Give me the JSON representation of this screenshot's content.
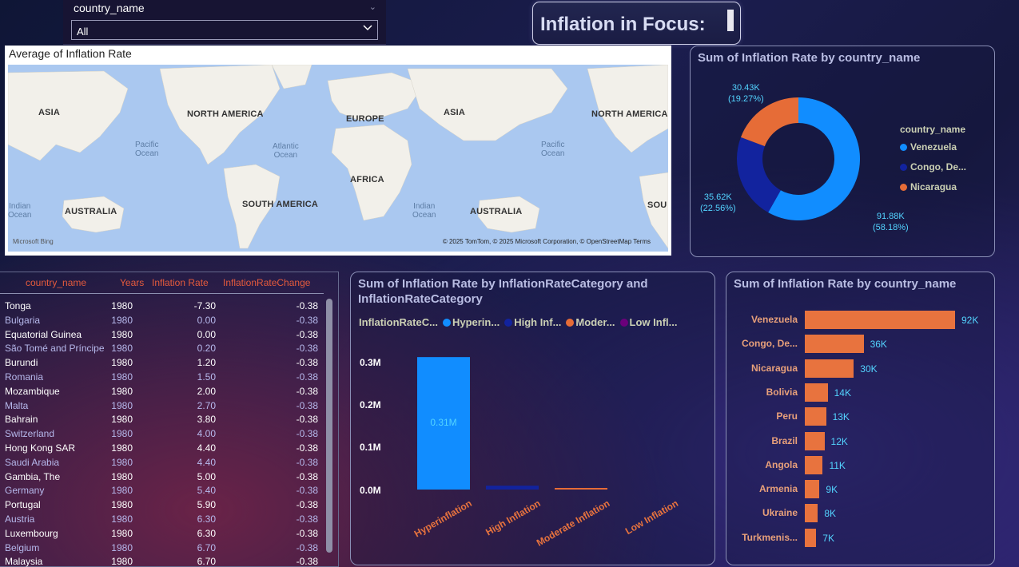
{
  "slicer": {
    "label": "country_name",
    "selected": "All"
  },
  "title": "Inflation in Focus:",
  "map": {
    "title": "Average of Inflation Rate",
    "continents": [
      "ASIA",
      "NORTH AMERICA",
      "EUROPE",
      "ASIA",
      "NORTH AMERICA",
      "AFRICA",
      "SOUTH AMERICA",
      "AUSTRALIA",
      "AUSTRALIA",
      "SOU"
    ],
    "oceans": [
      "Pacific\nOcean",
      "Atlantic\nOcean",
      "Pacific\nOcean",
      "Indian\nOcean",
      "Indian\nOcean"
    ],
    "attribution_logo": "Microsoft Bing",
    "attribution": "© 2025 TomTom, © 2025 Microsoft Corporation, © OpenStreetMap  Terms"
  },
  "donut": {
    "title": "Sum of Inflation Rate by country_name",
    "legend_title": "country_name",
    "labels": [
      {
        "value": "91.88K",
        "pct": "(58.18%)"
      },
      {
        "value": "35.62K",
        "pct": "(22.56%)"
      },
      {
        "value": "30.43K",
        "pct": "(19.27%)"
      }
    ]
  },
  "table": {
    "headers": [
      "country_name",
      "Years",
      "Inflation Rate",
      "InflationRateChange"
    ],
    "rows": [
      [
        "Tonga",
        "1980",
        "-7.30",
        "-0.38"
      ],
      [
        "Bulgaria",
        "1980",
        "0.00",
        "-0.38"
      ],
      [
        "Equatorial Guinea",
        "1980",
        "0.00",
        "-0.38"
      ],
      [
        "São Tomé and Príncipe",
        "1980",
        "0.20",
        "-0.38"
      ],
      [
        "Burundi",
        "1980",
        "1.20",
        "-0.38"
      ],
      [
        "Romania",
        "1980",
        "1.50",
        "-0.38"
      ],
      [
        "Mozambique",
        "1980",
        "2.00",
        "-0.38"
      ],
      [
        "Malta",
        "1980",
        "2.70",
        "-0.38"
      ],
      [
        "Bahrain",
        "1980",
        "3.80",
        "-0.38"
      ],
      [
        "Switzerland",
        "1980",
        "4.00",
        "-0.38"
      ],
      [
        "Hong Kong SAR",
        "1980",
        "4.40",
        "-0.38"
      ],
      [
        "Saudi Arabia",
        "1980",
        "4.40",
        "-0.38"
      ],
      [
        "Gambia, The",
        "1980",
        "5.00",
        "-0.38"
      ],
      [
        "Germany",
        "1980",
        "5.40",
        "-0.38"
      ],
      [
        "Portugal",
        "1980",
        "5.90",
        "-0.38"
      ],
      [
        "Austria",
        "1980",
        "6.30",
        "-0.38"
      ],
      [
        "Luxembourg",
        "1980",
        "6.30",
        "-0.38"
      ],
      [
        "Belgium",
        "1980",
        "6.70",
        "-0.38"
      ],
      [
        "Malaysia",
        "1980",
        "6.70",
        "-0.38"
      ]
    ]
  },
  "column_chart": {
    "title_line1": "Sum of Inflation Rate by InflationRateCategory and",
    "title_line2": "InflationRateCategory",
    "legend_label": "InflationRateC...",
    "legend_items": [
      "Hyperin...",
      "High Inf...",
      "Moder...",
      "Low Infl..."
    ],
    "yticks": [
      "0.3M",
      "0.2M",
      "0.1M",
      "0.0M"
    ],
    "bar_label": "0.31M"
  },
  "bar_chart": {
    "title": "Sum of Inflation Rate by country_name"
  },
  "colors": {
    "venezuela": "#118dff",
    "congo": "#12239e",
    "nicaragua": "#e66c37",
    "low": "#6b007b",
    "accent_cyan": "#53d4ff",
    "orange": "#e8733e"
  },
  "chart_data": [
    {
      "type": "pie",
      "title": "Sum of Inflation Rate by country_name",
      "categories": [
        "Venezuela",
        "Congo, De...",
        "Nicaragua"
      ],
      "values": [
        91880,
        35620,
        30430
      ],
      "percentages": [
        58.18,
        22.56,
        19.27
      ],
      "legend": "right"
    },
    {
      "type": "bar",
      "title": "Sum of Inflation Rate by InflationRateCategory and InflationRateCategory",
      "categories": [
        "Hyperinflation",
        "High Inflation",
        "Moderate Inflation",
        "Low Inflation"
      ],
      "values": [
        310000,
        9000,
        3000,
        0
      ],
      "ylim": [
        0,
        300000
      ],
      "legend": "top"
    },
    {
      "type": "bar",
      "title": "Sum of Inflation Rate by country_name",
      "categories": [
        "Venezuela",
        "Congo, De...",
        "Nicaragua",
        "Bolivia",
        "Peru",
        "Brazil",
        "Angola",
        "Armenia",
        "Ukraine",
        "Turkmenis..."
      ],
      "values": [
        92000,
        36000,
        30000,
        14000,
        13000,
        12000,
        11000,
        9000,
        8000,
        7000
      ],
      "labels": [
        "92K",
        "36K",
        "30K",
        "14K",
        "13K",
        "12K",
        "11K",
        "9K",
        "8K",
        "7K"
      ]
    }
  ]
}
